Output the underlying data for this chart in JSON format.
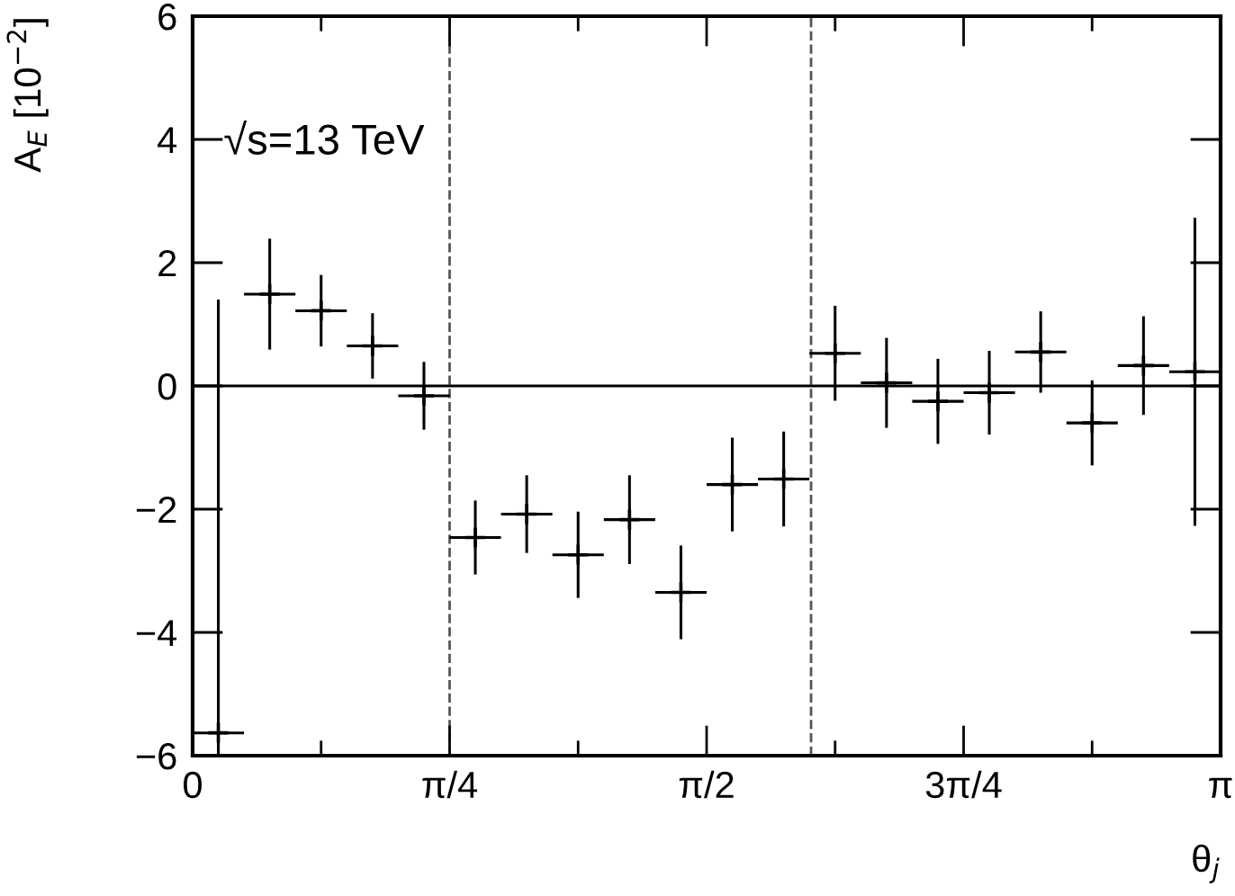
{
  "chart_data": {
    "type": "scatter",
    "marker": "cross",
    "color": "#000000",
    "xlabel": "θ$_{j}$",
    "ylabel": "A$_{E}$ [10$^{−2}$]",
    "annotations": [
      "√s=13 TeV"
    ],
    "x": [
      0.0785,
      0.2356,
      0.3927,
      0.5498,
      0.7069,
      0.8639,
      1.021,
      1.1781,
      1.3352,
      1.4923,
      1.6493,
      1.8064,
      1.9635,
      2.1206,
      2.2777,
      2.4347,
      2.5918,
      2.7489,
      2.906,
      3.0631
    ],
    "values": [
      -5.63,
      1.49,
      1.22,
      0.65,
      -0.16,
      -2.46,
      -2.08,
      -2.74,
      -2.17,
      -3.35,
      -1.6,
      -1.51,
      0.53,
      0.05,
      -0.25,
      -0.11,
      0.55,
      -0.6,
      0.33,
      0.23
    ],
    "errors": [
      [
        -6,
        1.4
      ],
      0.9,
      0.58,
      0.53,
      0.55,
      0.6,
      0.63,
      0.7,
      0.72,
      0.76,
      0.76,
      0.77,
      0.77,
      0.73,
      0.69,
      0.68,
      0.66,
      0.69,
      0.8,
      2.5
    ],
    "xerrors": [
      0.0785,
      0.0785,
      0.0785,
      0.0785,
      0.0785,
      0.0785,
      0.0785,
      0.0785,
      0.0785,
      0.0785,
      0.0785,
      0.0785,
      0.0785,
      0.0785,
      0.0785,
      0.0785,
      0.0785,
      0.0785,
      0.0785,
      0.0785
    ],
    "xlim": [
      0,
      3.1416
    ],
    "ylim": [
      -6,
      6
    ],
    "xticks": [
      {
        "value": 0,
        "label": "0"
      },
      {
        "value": 0.7854,
        "label": "π/4"
      },
      {
        "value": 1.5708,
        "label": "π/2"
      },
      {
        "value": 2.3562,
        "label": "3π/4"
      },
      {
        "value": 3.1416,
        "label": "π"
      }
    ],
    "yticks": [
      -6,
      -4,
      -2,
      0,
      2,
      4,
      6
    ],
    "ref_lines": [
      {
        "axis": "x",
        "value": 0.7854,
        "line_style": "dashed",
        "color": "#555555"
      },
      {
        "axis": "x",
        "value": 1.89,
        "line_style": "dashed",
        "color": "#555555"
      },
      {
        "axis": "y",
        "value": 0,
        "line_style": "solid",
        "color": "#000000"
      }
    ],
    "grid": false,
    "legend": false
  }
}
